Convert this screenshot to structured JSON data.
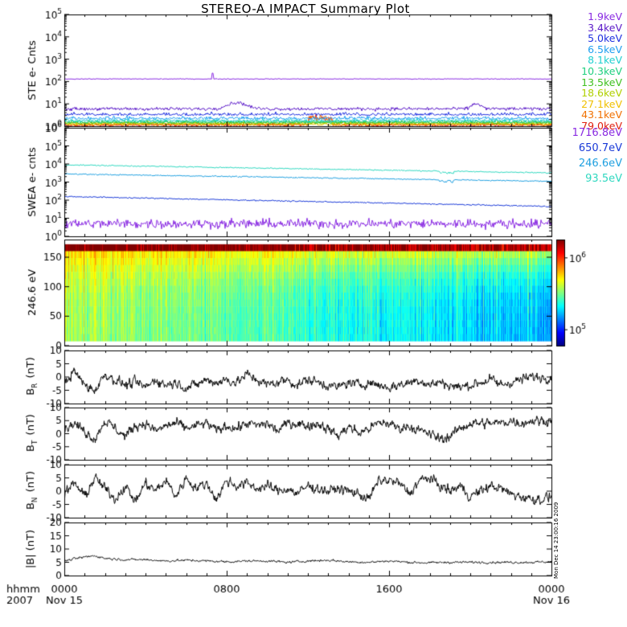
{
  "title": "STEREO-A IMPACT Summary Plot",
  "stamp": "Mon Dec 14 23:00:16 2009",
  "chart_data": [
    {
      "type": "line",
      "id": "ste",
      "ylabel": "STE e- Cnts",
      "yscale": "log",
      "ylim": [
        1,
        100000
      ],
      "yticks": [
        1,
        10,
        100,
        1000,
        10000,
        100000
      ],
      "ytick_labels": [
        "10^0",
        "10^1",
        "10^2",
        "10^3",
        "10^4",
        "10^5"
      ],
      "series": [
        {
          "name": "1.9keV",
          "color": "#8a2be2",
          "level": 130
        },
        {
          "name": "3.4keV",
          "color": "#5a18c8",
          "level": 6
        },
        {
          "name": "5.0keV",
          "color": "#2030e0",
          "level": 3
        },
        {
          "name": "6.5keV",
          "color": "#20a0f0",
          "level": 2
        },
        {
          "name": "8.1keV",
          "color": "#20d0d0",
          "level": 1.6
        },
        {
          "name": "10.3keV",
          "color": "#20d080",
          "level": 1.4
        },
        {
          "name": "13.5keV",
          "color": "#40c020",
          "level": 1.3
        },
        {
          "name": "18.6keV",
          "color": "#b0d000",
          "level": 1.2
        },
        {
          "name": "27.1keV",
          "color": "#f0c000",
          "level": 1.1
        },
        {
          "name": "43.1keV",
          "color": "#f07000",
          "level": 1.05
        },
        {
          "name": "79.0keV",
          "color": "#e02010",
          "level": 1.0
        }
      ]
    },
    {
      "type": "line",
      "id": "swea",
      "ylabel": "SWEA e- cnts",
      "yscale": "log",
      "ylim": [
        1,
        1000000
      ],
      "yticks": [
        1,
        10,
        100,
        1000,
        10000,
        100000,
        1000000
      ],
      "ytick_labels": [
        "10^0",
        "10^1",
        "10^2",
        "10^3",
        "10^4",
        "10^5",
        "10^6"
      ],
      "series": [
        {
          "name": "1716.8eV",
          "color": "#8a2be2",
          "start": 5,
          "end": 5
        },
        {
          "name": "650.7eV",
          "color": "#1a3ad8",
          "start": 160,
          "end": 45
        },
        {
          "name": "246.6eV",
          "color": "#20a0e0",
          "start": 2800,
          "end": 1100
        },
        {
          "name": "93.5eV",
          "color": "#30d8c0",
          "start": 9000,
          "end": 3200
        }
      ]
    },
    {
      "type": "heatmap",
      "id": "pad",
      "ylabel": "246.6 eV",
      "ylim": [
        0,
        180
      ],
      "yticks": [
        0,
        50,
        100,
        150
      ],
      "colorbar_ticks": [
        100000,
        1000000
      ],
      "colorbar_labels": [
        "10^5",
        "10^6"
      ]
    },
    {
      "type": "line",
      "id": "br",
      "ylabel": "B_R (nT)",
      "ylim": [
        -10,
        10
      ],
      "yticks": [
        -10,
        -5,
        0,
        5,
        10
      ],
      "points": [
        [
          0,
          -2
        ],
        [
          0.5,
          2
        ],
        [
          1,
          -3
        ],
        [
          1.5,
          -5
        ],
        [
          2,
          1
        ],
        [
          2.5,
          -1
        ],
        [
          3,
          -3
        ],
        [
          3.5,
          -2
        ],
        [
          4,
          -4
        ],
        [
          4.5,
          -1
        ],
        [
          5,
          -3
        ],
        [
          5.5,
          -2
        ],
        [
          6,
          -4
        ],
        [
          6.5,
          -3
        ],
        [
          7,
          -1
        ],
        [
          7.5,
          -2
        ],
        [
          8,
          -1
        ],
        [
          8.5,
          -2
        ],
        [
          9,
          1
        ],
        [
          9.5,
          -1
        ],
        [
          10,
          -3
        ],
        [
          10.5,
          -2
        ],
        [
          11,
          -1
        ],
        [
          11.5,
          -3
        ],
        [
          12,
          -1
        ],
        [
          12.5,
          -2
        ],
        [
          13,
          -3
        ],
        [
          13.5,
          -4
        ],
        [
          14,
          -2
        ],
        [
          14.5,
          -3
        ],
        [
          15,
          -2
        ],
        [
          15.5,
          -3
        ],
        [
          16,
          -4
        ],
        [
          16.5,
          -3
        ],
        [
          17,
          -2
        ],
        [
          17.5,
          -1
        ],
        [
          18,
          -3
        ],
        [
          18.5,
          -2
        ],
        [
          19,
          -3
        ],
        [
          19.5,
          -4
        ],
        [
          20,
          -3
        ],
        [
          20.5,
          -2
        ],
        [
          21,
          -1
        ],
        [
          21.5,
          -3
        ],
        [
          22,
          -2
        ],
        [
          22.5,
          -1
        ],
        [
          23,
          0
        ],
        [
          23.5,
          0
        ],
        [
          24,
          0
        ]
      ]
    },
    {
      "type": "line",
      "id": "bt",
      "ylabel": "B_T (nT)",
      "ylim": [
        -10,
        10
      ],
      "yticks": [
        -10,
        -5,
        0,
        5,
        10
      ],
      "points": [
        [
          0,
          2
        ],
        [
          0.5,
          4
        ],
        [
          1,
          1
        ],
        [
          1.5,
          -2
        ],
        [
          2,
          5
        ],
        [
          2.5,
          2
        ],
        [
          3,
          -1
        ],
        [
          3.5,
          3
        ],
        [
          4,
          4
        ],
        [
          4.5,
          1
        ],
        [
          5,
          3
        ],
        [
          5.5,
          4
        ],
        [
          6,
          2
        ],
        [
          6.5,
          3
        ],
        [
          7,
          4
        ],
        [
          7.5,
          1
        ],
        [
          8,
          3
        ],
        [
          8.5,
          2
        ],
        [
          9,
          4
        ],
        [
          9.5,
          3
        ],
        [
          10,
          4
        ],
        [
          10.5,
          1
        ],
        [
          11,
          4
        ],
        [
          11.5,
          4
        ],
        [
          12,
          3
        ],
        [
          12.5,
          4
        ],
        [
          13,
          2
        ],
        [
          13.5,
          -1
        ],
        [
          14,
          3
        ],
        [
          14.5,
          0
        ],
        [
          15,
          2
        ],
        [
          15.5,
          4
        ],
        [
          16,
          4
        ],
        [
          16.5,
          2
        ],
        [
          17,
          3
        ],
        [
          17.5,
          1
        ],
        [
          18,
          0
        ],
        [
          18.5,
          -2
        ],
        [
          19,
          -1
        ],
        [
          19.5,
          2
        ],
        [
          20,
          4
        ],
        [
          20.5,
          4
        ],
        [
          21,
          4
        ],
        [
          21.5,
          4
        ],
        [
          22,
          5
        ],
        [
          22.5,
          4
        ],
        [
          23,
          5
        ],
        [
          23.5,
          5
        ],
        [
          24,
          5
        ]
      ]
    },
    {
      "type": "line",
      "id": "bn",
      "ylabel": "B_N (nT)",
      "ylim": [
        -10,
        10
      ],
      "yticks": [
        -10,
        -5,
        0,
        5,
        10
      ],
      "points": [
        [
          0,
          -1
        ],
        [
          0.5,
          3
        ],
        [
          1,
          -2
        ],
        [
          1.5,
          5
        ],
        [
          2,
          1
        ],
        [
          2.5,
          -3
        ],
        [
          3,
          2
        ],
        [
          3.5,
          -4
        ],
        [
          4,
          3
        ],
        [
          4.5,
          0
        ],
        [
          5,
          4
        ],
        [
          5.5,
          -2
        ],
        [
          6,
          5
        ],
        [
          6.5,
          1
        ],
        [
          7,
          3
        ],
        [
          7.5,
          -3
        ],
        [
          8,
          4
        ],
        [
          8.5,
          2
        ],
        [
          9,
          3
        ],
        [
          9.5,
          1
        ],
        [
          10,
          2
        ],
        [
          10.5,
          0
        ],
        [
          11,
          1
        ],
        [
          11.5,
          -1
        ],
        [
          12,
          2
        ],
        [
          12.5,
          1
        ],
        [
          13,
          0
        ],
        [
          13.5,
          1
        ],
        [
          14,
          0
        ],
        [
          14.5,
          -1
        ],
        [
          15,
          -3
        ],
        [
          15.5,
          4
        ],
        [
          16,
          4
        ],
        [
          16.5,
          3
        ],
        [
          17,
          -1
        ],
        [
          17.5,
          4
        ],
        [
          18,
          5
        ],
        [
          18.5,
          2
        ],
        [
          19,
          0
        ],
        [
          19.5,
          2
        ],
        [
          20,
          -2
        ],
        [
          20.5,
          0
        ],
        [
          21,
          2
        ],
        [
          21.5,
          1
        ],
        [
          22,
          -1
        ],
        [
          22.5,
          -2
        ],
        [
          23,
          -3
        ],
        [
          23.5,
          -3
        ],
        [
          24,
          -2
        ]
      ]
    },
    {
      "type": "line",
      "id": "bmag",
      "ylabel": "|B| (nT)",
      "ylim": [
        0,
        20
      ],
      "yticks": [
        0,
        5,
        10,
        15,
        20
      ],
      "points": [
        [
          0,
          5.5
        ],
        [
          1,
          7
        ],
        [
          1.5,
          7.5
        ],
        [
          2,
          6.5
        ],
        [
          3,
          6
        ],
        [
          4,
          6
        ],
        [
          5,
          5.5
        ],
        [
          6,
          5.8
        ],
        [
          7,
          5.5
        ],
        [
          8,
          5.2
        ],
        [
          9,
          5.5
        ],
        [
          10,
          5.5
        ],
        [
          11,
          5
        ],
        [
          12,
          5.5
        ],
        [
          13,
          5.8
        ],
        [
          14,
          5.2
        ],
        [
          15,
          5
        ],
        [
          16,
          5.5
        ],
        [
          17,
          5
        ],
        [
          18,
          4.8
        ],
        [
          19,
          5
        ],
        [
          20,
          5
        ],
        [
          21,
          5
        ],
        [
          22,
          5
        ],
        [
          23,
          5
        ],
        [
          24,
          5.2
        ]
      ]
    }
  ],
  "x_axis": {
    "xlim_hours": [
      0,
      24
    ],
    "ticks": [
      {
        "hour": 0,
        "label": "0000",
        "sub": "Nov 15"
      },
      {
        "hour": 8,
        "label": "0800",
        "sub": ""
      },
      {
        "hour": 16,
        "label": "1600",
        "sub": ""
      },
      {
        "hour": 24,
        "label": "0000",
        "sub": "Nov 16"
      }
    ],
    "corner_label": "hhmm",
    "corner_year": "2007"
  }
}
